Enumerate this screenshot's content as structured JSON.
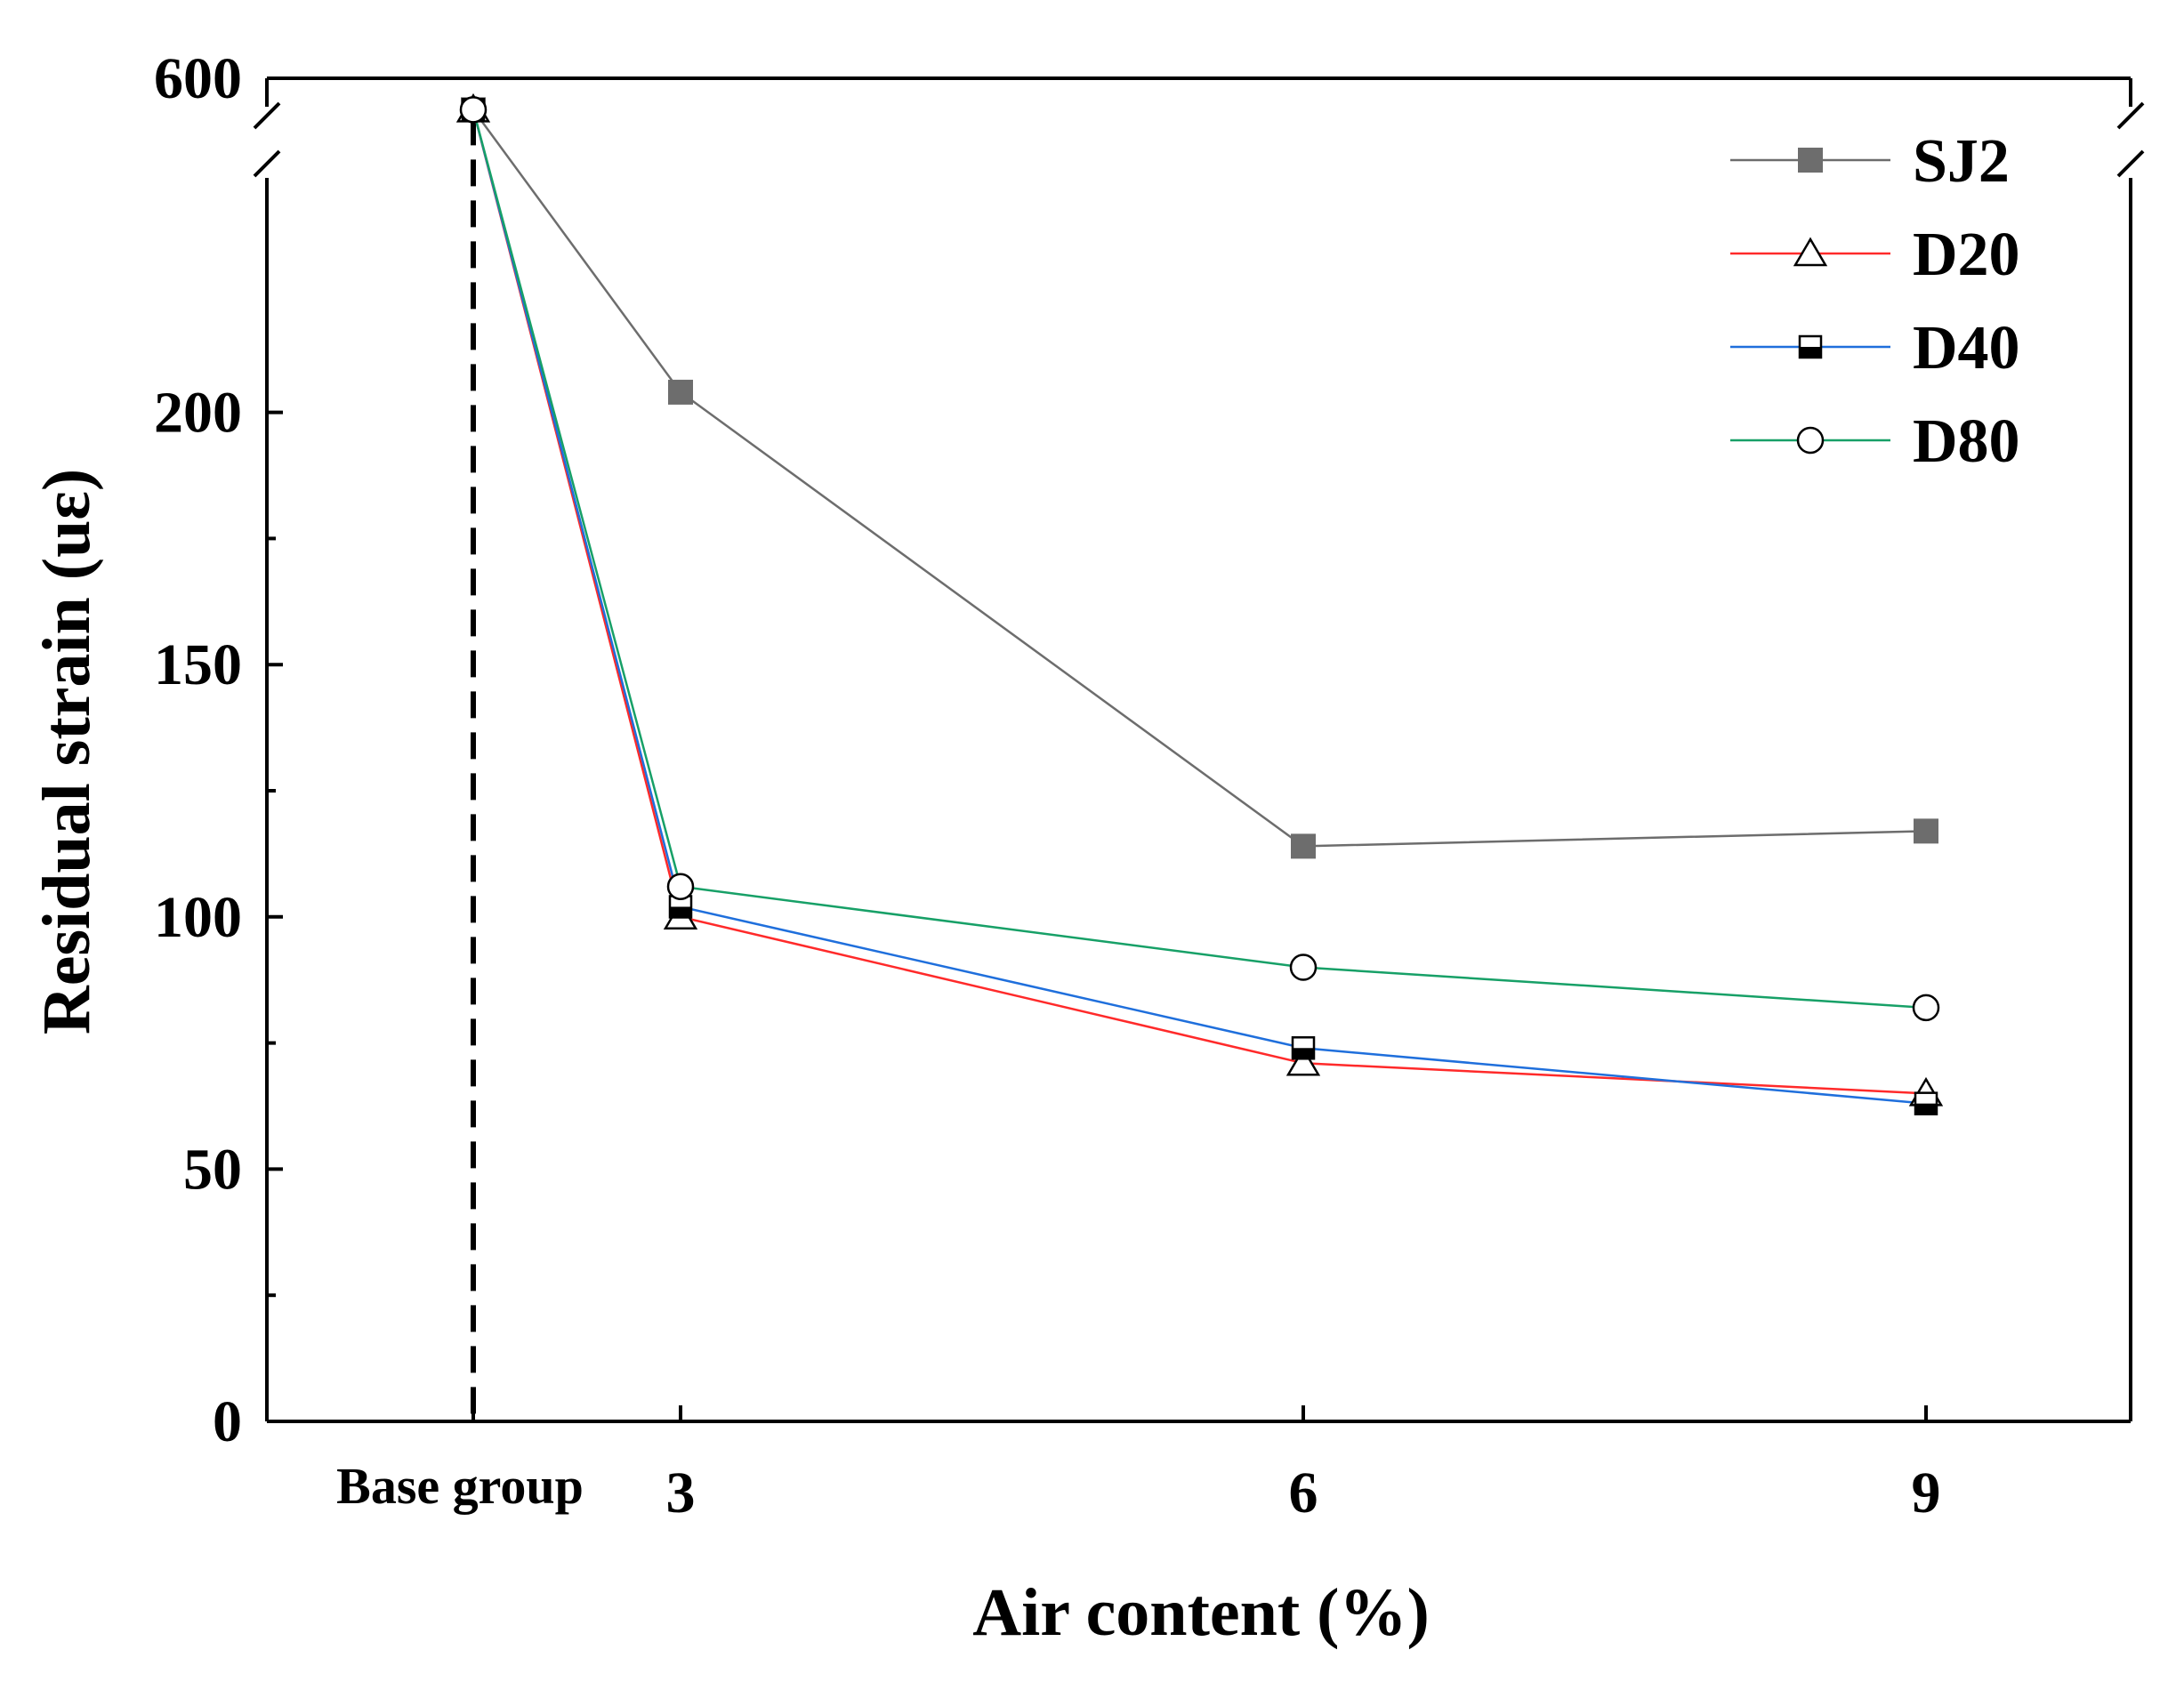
{
  "chart_data": {
    "type": "line",
    "xlabel": "Air content (%)",
    "ylabel": "Residual strain (uε)",
    "categories": [
      "Base group",
      "3",
      "6",
      "9"
    ],
    "y_ticks": [
      0,
      50,
      100,
      150,
      200,
      600
    ],
    "y_axis_break": true,
    "broken_axis_top_label": "600",
    "ylim": [
      0,
      600
    ],
    "grid": false,
    "legend_position": "top-right",
    "series": [
      {
        "name": "SJ2",
        "values": [
          580,
          204,
          114,
          117
        ],
        "color": "#6d6d6d",
        "marker": "filled-square"
      },
      {
        "name": "D20",
        "values": [
          580,
          100,
          71,
          65
        ],
        "color": "#ff2a2a",
        "marker": "open-triangle"
      },
      {
        "name": "D40",
        "values": [
          580,
          102,
          74,
          63
        ],
        "color": "#1f6fdc",
        "marker": "half-filled-square"
      },
      {
        "name": "D80",
        "values": [
          580,
          106,
          90,
          82
        ],
        "color": "#17a067",
        "marker": "open-circle"
      }
    ]
  }
}
